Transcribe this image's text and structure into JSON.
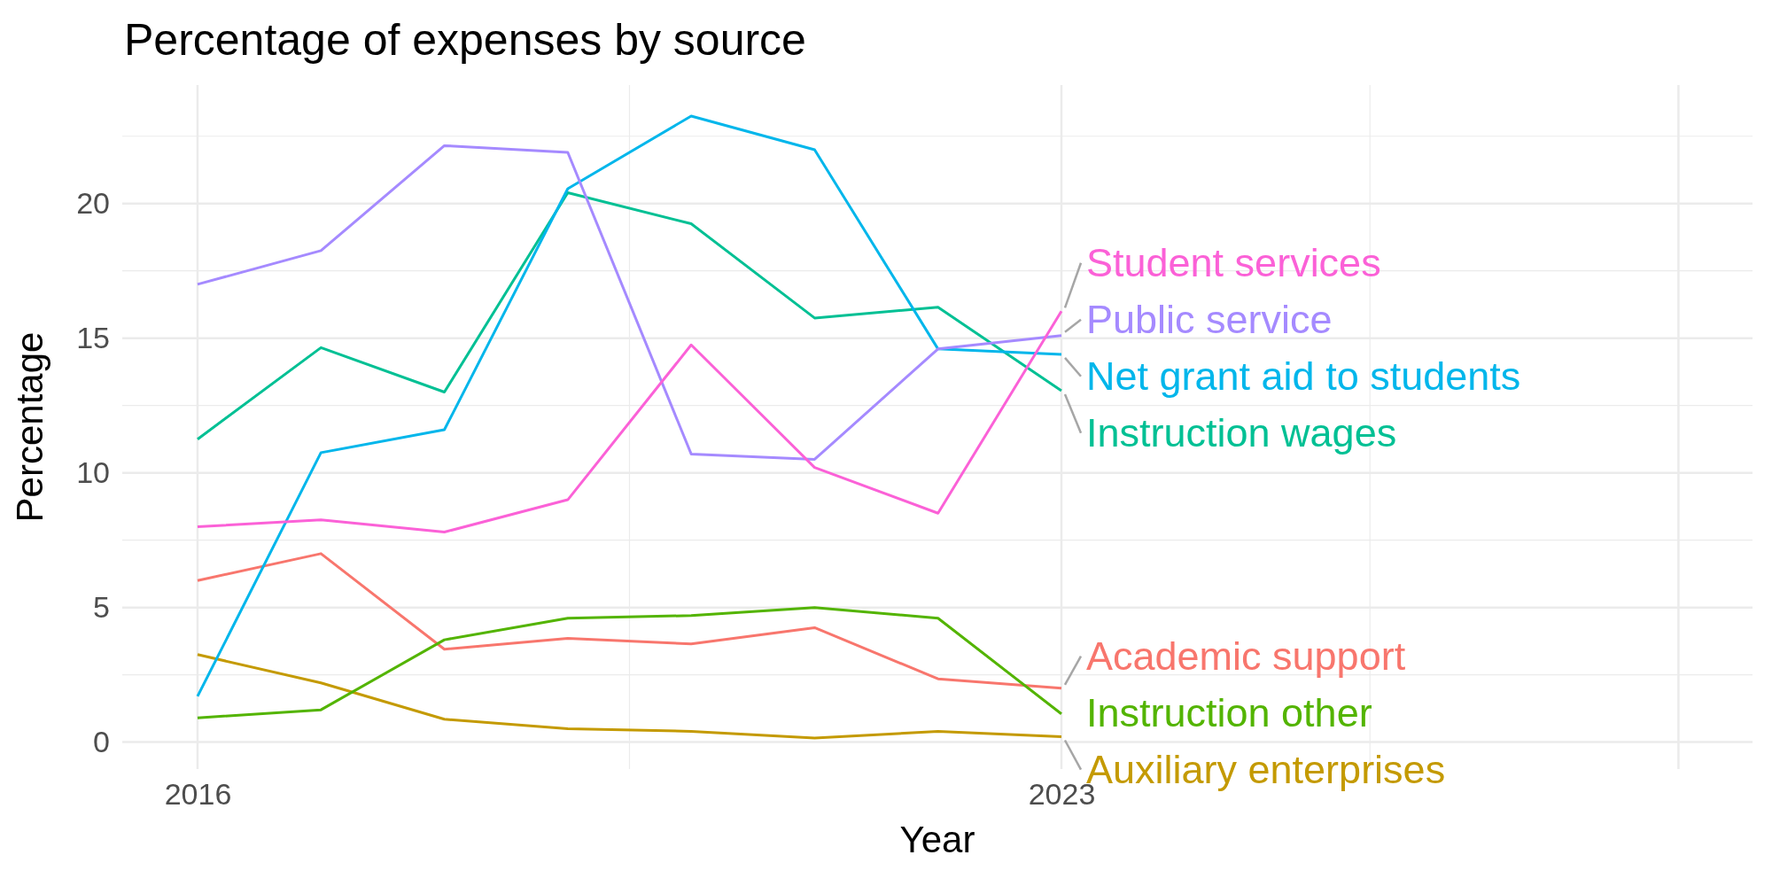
{
  "chart_data": {
    "type": "line",
    "title": "Percentage of expenses by source",
    "xlabel": "Year",
    "ylabel": "Percentage",
    "x": [
      2016,
      2017,
      2018,
      2019,
      2020,
      2021,
      2022,
      2023
    ],
    "xlim": [
      2015.39,
      2028.6
    ],
    "xticks": [
      2016,
      2023,
      {
        "value": 2028,
        "label": null
      }
    ],
    "ylim": [
      -1,
      24.4
    ],
    "yticks": [
      0,
      5,
      10,
      15,
      20
    ],
    "grid": true,
    "series": [
      {
        "name": "Academic support",
        "color": "#f8766d",
        "values": [
          6.0,
          7.0,
          3.45,
          3.85,
          3.65,
          4.25,
          2.35,
          2.0
        ]
      },
      {
        "name": "Auxiliary enterprises",
        "color": "#c49a00",
        "values": [
          3.25,
          2.2,
          0.85,
          0.5,
          0.4,
          0.15,
          0.4,
          0.2
        ]
      },
      {
        "name": "Instruction other",
        "color": "#53b400",
        "values": [
          0.9,
          1.2,
          3.8,
          4.6,
          4.7,
          5.0,
          4.6,
          1.05
        ]
      },
      {
        "name": "Instruction wages",
        "color": "#00c094",
        "values": [
          11.25,
          14.65,
          13.0,
          20.4,
          19.25,
          15.75,
          16.15,
          13.05
        ]
      },
      {
        "name": "Net grant aid to students",
        "color": "#00b6eb",
        "values": [
          1.7,
          10.75,
          11.6,
          20.55,
          23.25,
          22.0,
          14.6,
          14.4
        ]
      },
      {
        "name": "Public service",
        "color": "#a58aff",
        "values": [
          17.0,
          18.25,
          22.15,
          21.9,
          10.7,
          10.5,
          14.6,
          15.1
        ]
      },
      {
        "name": "Student services",
        "color": "#fb61d7",
        "values": [
          8.0,
          8.25,
          7.8,
          9.0,
          14.75,
          10.2,
          8.5,
          16.0
        ]
      }
    ]
  }
}
